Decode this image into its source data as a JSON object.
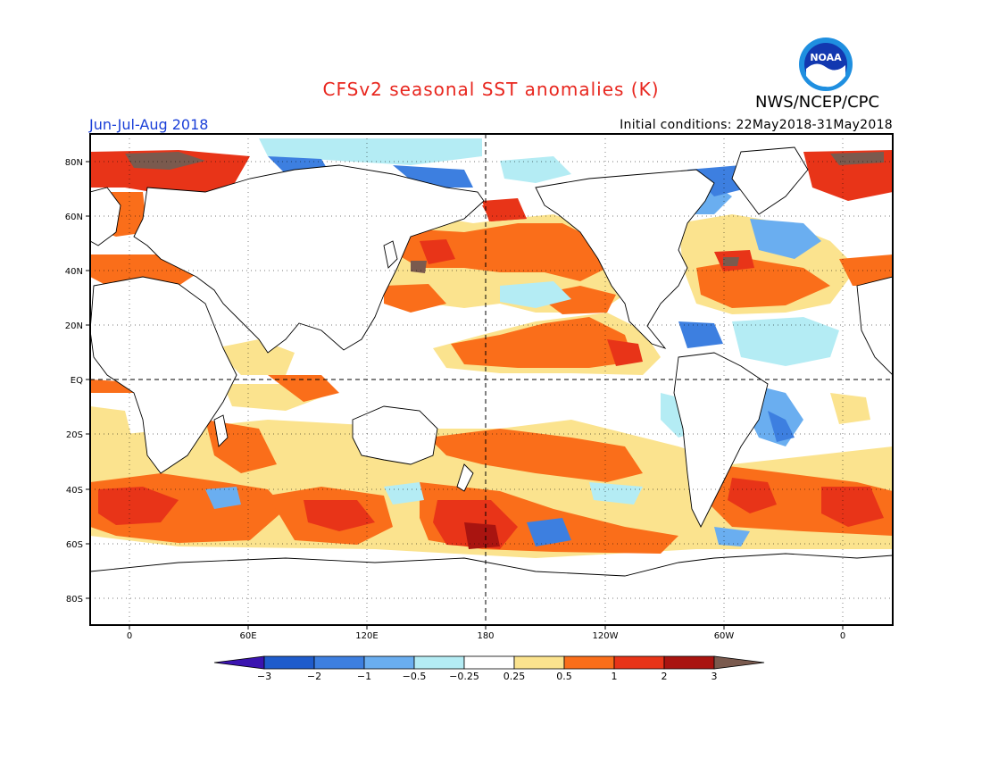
{
  "title": "CFSv2 seasonal SST anomalies (K)",
  "agency": "NWS/NCEP/CPC",
  "logo_text": "NOAA",
  "season": "Jun-Jul-Aug 2018",
  "initial_conditions": "Initial conditions: 22May2018-31May2018",
  "colors": {
    "title": "#e8261e",
    "season": "#1a3fd8",
    "land": "#ffffff",
    "neutral": "#ffffff"
  },
  "map": {
    "lat_labels": [
      "80N",
      "60N",
      "40N",
      "20N",
      "EQ",
      "20S",
      "40S",
      "60S",
      "80S"
    ],
    "lon_labels": [
      "0",
      "60E",
      "120E",
      "180",
      "120W",
      "60W",
      "0"
    ]
  },
  "legend": {
    "colors": [
      "#3b14b0",
      "#1f5ccc",
      "#3d7fe0",
      "#6aaef0",
      "#b4ecf4",
      "#ffffff",
      "#fbe38e",
      "#fa6e1a",
      "#e83418",
      "#a91410",
      "#7a5a4e"
    ],
    "labels": [
      "−3",
      "−2",
      "−1",
      "−0.5",
      "−0.25",
      "0.25",
      "0.5",
      "1",
      "2",
      "3"
    ]
  }
}
